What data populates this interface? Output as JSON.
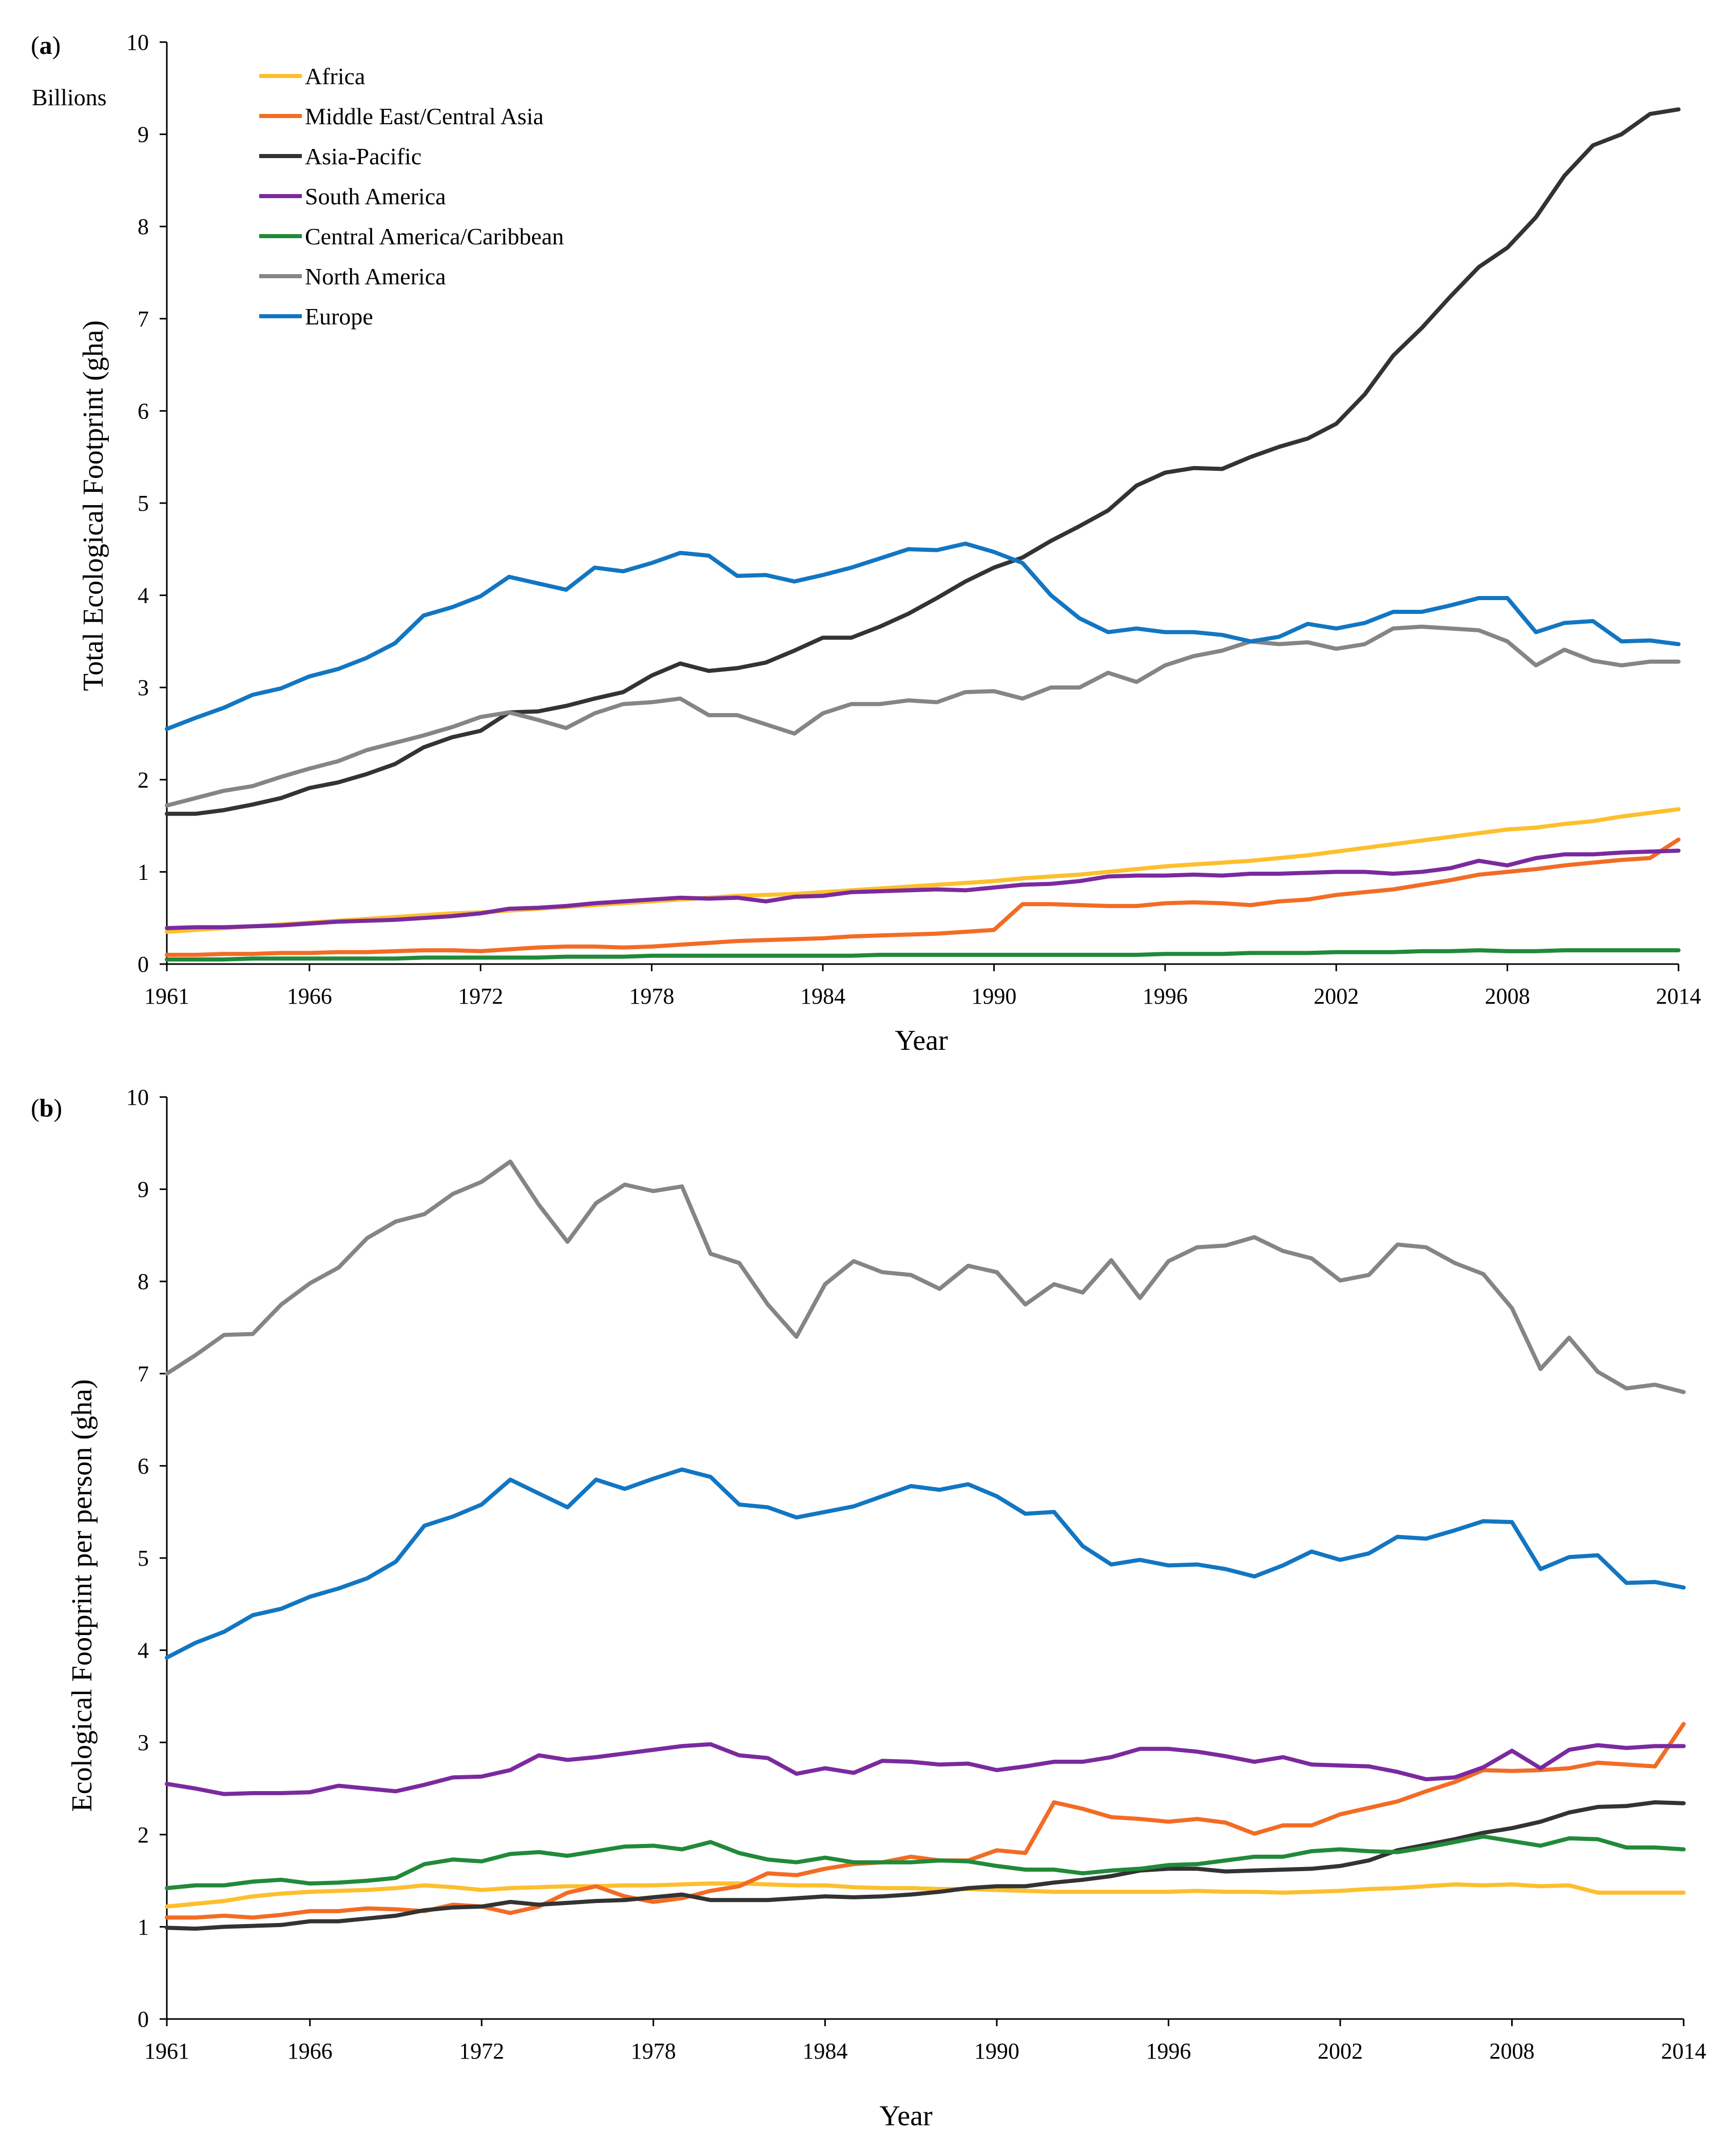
{
  "colors": {
    "africa": "#fdbf2d",
    "middle_east": "#f26c24",
    "asia_pacific": "#333333",
    "south_america": "#7b2a9e",
    "central_america": "#218a3a",
    "north_america": "#858585",
    "europe": "#1276c2"
  },
  "chart_data": [
    {
      "type": "line",
      "panel_label": "(a)",
      "panel_letter": "a",
      "units_label": "Billions",
      "title": "",
      "xlabel": "Year",
      "ylabel": "Total Ecological Footprint (gha)",
      "xlim": [
        1961,
        2014
      ],
      "ylim": [
        0,
        10
      ],
      "xticks": [
        1961,
        1966,
        1972,
        1978,
        1984,
        1990,
        1996,
        2002,
        2008,
        2014
      ],
      "yticks": [
        0,
        1,
        2,
        3,
        4,
        5,
        6,
        7,
        8,
        9,
        10
      ],
      "legend": [
        "Africa",
        "Middle East/Central Asia",
        "Asia-Pacific",
        "South America",
        "Central America/Caribbean",
        "North America",
        "Europe"
      ],
      "x": [
        1961,
        1962,
        1963,
        1964,
        1965,
        1966,
        1967,
        1968,
        1969,
        1970,
        1971,
        1972,
        1973,
        1974,
        1975,
        1976,
        1977,
        1978,
        1979,
        1980,
        1981,
        1982,
        1983,
        1984,
        1985,
        1986,
        1987,
        1988,
        1989,
        1990,
        1991,
        1992,
        1993,
        1994,
        1995,
        1996,
        1997,
        1998,
        1999,
        2000,
        2001,
        2002,
        2003,
        2004,
        2005,
        2006,
        2007,
        2008,
        2009,
        2010,
        2011,
        2012,
        2013,
        2014
      ],
      "series": [
        {
          "key": "africa",
          "name": "Africa",
          "values": [
            0.35,
            0.37,
            0.39,
            0.41,
            0.43,
            0.45,
            0.47,
            0.49,
            0.51,
            0.53,
            0.55,
            0.56,
            0.58,
            0.6,
            0.62,
            0.64,
            0.66,
            0.68,
            0.7,
            0.72,
            0.74,
            0.75,
            0.76,
            0.78,
            0.8,
            0.82,
            0.84,
            0.86,
            0.88,
            0.9,
            0.93,
            0.95,
            0.97,
            1.0,
            1.03,
            1.06,
            1.08,
            1.1,
            1.12,
            1.15,
            1.18,
            1.22,
            1.26,
            1.3,
            1.34,
            1.38,
            1.42,
            1.46,
            1.48,
            1.52,
            1.55,
            1.6,
            1.64,
            1.68
          ]
        },
        {
          "key": "middle_east",
          "name": "Middle East/Central Asia",
          "values": [
            0.1,
            0.1,
            0.11,
            0.11,
            0.12,
            0.12,
            0.13,
            0.13,
            0.14,
            0.15,
            0.15,
            0.14,
            0.16,
            0.18,
            0.19,
            0.19,
            0.18,
            0.19,
            0.21,
            0.23,
            0.25,
            0.26,
            0.27,
            0.28,
            0.3,
            0.31,
            0.32,
            0.33,
            0.35,
            0.37,
            0.65,
            0.65,
            0.64,
            0.63,
            0.63,
            0.66,
            0.67,
            0.66,
            0.64,
            0.68,
            0.7,
            0.75,
            0.78,
            0.81,
            0.86,
            0.91,
            0.97,
            1.0,
            1.03,
            1.07,
            1.1,
            1.13,
            1.15,
            1.35
          ]
        },
        {
          "key": "asia_pacific",
          "name": "Asia-Pacific",
          "values": [
            1.63,
            1.63,
            1.67,
            1.73,
            1.8,
            1.91,
            1.97,
            2.06,
            2.17,
            2.35,
            2.46,
            2.53,
            2.73,
            2.74,
            2.8,
            2.88,
            2.95,
            3.13,
            3.26,
            3.18,
            3.21,
            3.27,
            3.4,
            3.54,
            3.54,
            3.66,
            3.8,
            3.97,
            4.15,
            4.3,
            4.41,
            4.59,
            4.75,
            4.92,
            5.19,
            5.33,
            5.38,
            5.37,
            5.5,
            5.61,
            5.7,
            5.86,
            6.18,
            6.6,
            6.9,
            7.24,
            7.56,
            7.77,
            8.1,
            8.55,
            8.88,
            9.0,
            9.22,
            9.27
          ]
        },
        {
          "key": "south_america",
          "name": "South America",
          "values": [
            0.39,
            0.4,
            0.4,
            0.41,
            0.42,
            0.44,
            0.46,
            0.47,
            0.48,
            0.5,
            0.52,
            0.55,
            0.6,
            0.61,
            0.63,
            0.66,
            0.68,
            0.7,
            0.72,
            0.71,
            0.72,
            0.68,
            0.73,
            0.74,
            0.78,
            0.79,
            0.8,
            0.81,
            0.8,
            0.83,
            0.86,
            0.87,
            0.9,
            0.95,
            0.96,
            0.96,
            0.97,
            0.96,
            0.98,
            0.98,
            0.99,
            1.0,
            1.0,
            0.98,
            1.0,
            1.04,
            1.12,
            1.07,
            1.15,
            1.19,
            1.19,
            1.21,
            1.22,
            1.23
          ]
        },
        {
          "key": "central_america",
          "name": "Central America/Caribbean",
          "values": [
            0.05,
            0.05,
            0.05,
            0.06,
            0.06,
            0.06,
            0.06,
            0.06,
            0.06,
            0.07,
            0.07,
            0.07,
            0.07,
            0.07,
            0.08,
            0.08,
            0.08,
            0.09,
            0.09,
            0.09,
            0.09,
            0.09,
            0.09,
            0.09,
            0.09,
            0.1,
            0.1,
            0.1,
            0.1,
            0.1,
            0.1,
            0.1,
            0.1,
            0.1,
            0.1,
            0.11,
            0.11,
            0.11,
            0.12,
            0.12,
            0.12,
            0.13,
            0.13,
            0.13,
            0.14,
            0.14,
            0.15,
            0.14,
            0.14,
            0.15,
            0.15,
            0.15,
            0.15,
            0.15
          ]
        },
        {
          "key": "north_america",
          "name": "North America",
          "values": [
            1.72,
            1.8,
            1.88,
            1.93,
            2.03,
            2.12,
            2.2,
            2.32,
            2.4,
            2.48,
            2.57,
            2.68,
            2.73,
            2.65,
            2.56,
            2.72,
            2.82,
            2.84,
            2.88,
            2.7,
            2.7,
            2.6,
            2.5,
            2.72,
            2.82,
            2.82,
            2.86,
            2.84,
            2.95,
            2.96,
            2.88,
            3.0,
            3.0,
            3.16,
            3.06,
            3.24,
            3.34,
            3.4,
            3.5,
            3.47,
            3.49,
            3.42,
            3.47,
            3.64,
            3.66,
            3.64,
            3.62,
            3.5,
            3.24,
            3.41,
            3.29,
            3.24,
            3.28,
            3.28
          ]
        },
        {
          "key": "europe",
          "name": "Europe",
          "values": [
            2.55,
            2.67,
            2.78,
            2.92,
            2.99,
            3.12,
            3.2,
            3.32,
            3.48,
            3.78,
            3.87,
            3.99,
            4.2,
            4.13,
            4.06,
            4.3,
            4.26,
            4.35,
            4.46,
            4.43,
            4.21,
            4.22,
            4.15,
            4.22,
            4.3,
            4.4,
            4.5,
            4.49,
            4.56,
            4.47,
            4.35,
            4.0,
            3.75,
            3.6,
            3.64,
            3.6,
            3.6,
            3.57,
            3.5,
            3.55,
            3.69,
            3.64,
            3.7,
            3.82,
            3.82,
            3.89,
            3.97,
            3.97,
            3.6,
            3.7,
            3.72,
            3.5,
            3.51,
            3.47
          ]
        }
      ]
    },
    {
      "type": "line",
      "panel_label": "(b)",
      "panel_letter": "b",
      "title": "",
      "xlabel": "Year",
      "ylabel": "Ecological Footprint per person (gha)",
      "xlim": [
        1961,
        2014
      ],
      "ylim": [
        0,
        10
      ],
      "xticks": [
        1961,
        1966,
        1972,
        1978,
        1984,
        1990,
        1996,
        2002,
        2008,
        2014
      ],
      "yticks": [
        0,
        1,
        2,
        3,
        4,
        5,
        6,
        7,
        8,
        9,
        10
      ],
      "x": [
        1961,
        1962,
        1963,
        1964,
        1965,
        1966,
        1967,
        1968,
        1969,
        1970,
        1971,
        1972,
        1973,
        1974,
        1975,
        1976,
        1977,
        1978,
        1979,
        1980,
        1981,
        1982,
        1983,
        1984,
        1985,
        1986,
        1987,
        1988,
        1989,
        1990,
        1991,
        1992,
        1993,
        1994,
        1995,
        1996,
        1997,
        1998,
        1999,
        2000,
        2001,
        2002,
        2003,
        2004,
        2005,
        2006,
        2007,
        2008,
        2009,
        2010,
        2011,
        2012,
        2013,
        2014
      ],
      "series": [
        {
          "key": "africa",
          "name": "Africa",
          "values": [
            1.22,
            1.25,
            1.28,
            1.33,
            1.36,
            1.38,
            1.39,
            1.4,
            1.42,
            1.45,
            1.43,
            1.4,
            1.42,
            1.43,
            1.44,
            1.44,
            1.45,
            1.45,
            1.46,
            1.47,
            1.47,
            1.46,
            1.45,
            1.45,
            1.43,
            1.42,
            1.42,
            1.41,
            1.41,
            1.4,
            1.39,
            1.38,
            1.38,
            1.38,
            1.38,
            1.38,
            1.39,
            1.38,
            1.38,
            1.37,
            1.38,
            1.39,
            1.41,
            1.42,
            1.44,
            1.46,
            1.45,
            1.46,
            1.44,
            1.45,
            1.37,
            1.37,
            1.37,
            1.37
          ]
        },
        {
          "key": "middle_east",
          "name": "Middle East/Central Asia",
          "values": [
            1.1,
            1.1,
            1.12,
            1.1,
            1.13,
            1.17,
            1.17,
            1.2,
            1.19,
            1.17,
            1.24,
            1.22,
            1.15,
            1.22,
            1.37,
            1.44,
            1.33,
            1.27,
            1.31,
            1.39,
            1.44,
            1.58,
            1.56,
            1.63,
            1.68,
            1.7,
            1.76,
            1.72,
            1.72,
            1.83,
            1.8,
            2.35,
            2.28,
            2.19,
            2.17,
            2.14,
            2.17,
            2.13,
            2.01,
            2.1,
            2.1,
            2.22,
            2.29,
            2.36,
            2.47,
            2.57,
            2.7,
            2.69,
            2.7,
            2.72,
            2.78,
            2.76,
            2.74,
            3.2
          ]
        },
        {
          "key": "asia_pacific",
          "name": "Asia-Pacific",
          "values": [
            0.99,
            0.98,
            1.0,
            1.01,
            1.02,
            1.06,
            1.06,
            1.09,
            1.12,
            1.18,
            1.21,
            1.22,
            1.27,
            1.24,
            1.26,
            1.28,
            1.29,
            1.32,
            1.35,
            1.29,
            1.29,
            1.29,
            1.31,
            1.33,
            1.32,
            1.33,
            1.35,
            1.38,
            1.42,
            1.44,
            1.44,
            1.48,
            1.51,
            1.55,
            1.61,
            1.63,
            1.63,
            1.6,
            1.61,
            1.62,
            1.63,
            1.66,
            1.72,
            1.83,
            1.89,
            1.95,
            2.02,
            2.07,
            2.14,
            2.24,
            2.3,
            2.31,
            2.35,
            2.34
          ]
        },
        {
          "key": "south_america",
          "name": "South America",
          "values": [
            2.55,
            2.5,
            2.44,
            2.45,
            2.45,
            2.46,
            2.53,
            2.5,
            2.47,
            2.54,
            2.62,
            2.63,
            2.7,
            2.86,
            2.81,
            2.84,
            2.88,
            2.92,
            2.96,
            2.98,
            2.86,
            2.83,
            2.66,
            2.72,
            2.67,
            2.8,
            2.79,
            2.76,
            2.77,
            2.7,
            2.74,
            2.79,
            2.79,
            2.84,
            2.93,
            2.93,
            2.9,
            2.85,
            2.79,
            2.84,
            2.76,
            2.75,
            2.74,
            2.68,
            2.6,
            2.62,
            2.73,
            2.91,
            2.72,
            2.92,
            2.97,
            2.94,
            2.96,
            2.96
          ]
        },
        {
          "key": "central_america",
          "name": "Central America/Caribbean",
          "values": [
            1.42,
            1.45,
            1.45,
            1.49,
            1.51,
            1.47,
            1.48,
            1.5,
            1.53,
            1.68,
            1.73,
            1.71,
            1.79,
            1.81,
            1.77,
            1.82,
            1.87,
            1.88,
            1.84,
            1.92,
            1.8,
            1.73,
            1.7,
            1.75,
            1.7,
            1.7,
            1.7,
            1.72,
            1.71,
            1.66,
            1.62,
            1.62,
            1.58,
            1.61,
            1.63,
            1.67,
            1.68,
            1.72,
            1.76,
            1.76,
            1.82,
            1.84,
            1.82,
            1.81,
            1.86,
            1.92,
            1.98,
            1.93,
            1.88,
            1.96,
            1.95,
            1.86,
            1.86,
            1.84
          ]
        },
        {
          "key": "north_america",
          "name": "North America",
          "values": [
            7.0,
            7.2,
            7.42,
            7.43,
            7.75,
            7.98,
            8.15,
            8.47,
            8.65,
            8.73,
            8.95,
            9.08,
            9.3,
            8.83,
            8.43,
            8.85,
            9.05,
            8.98,
            9.03,
            8.3,
            8.2,
            7.75,
            7.4,
            7.97,
            8.22,
            8.1,
            8.07,
            7.92,
            8.17,
            8.1,
            7.75,
            7.97,
            7.88,
            8.23,
            7.82,
            8.22,
            8.37,
            8.39,
            8.48,
            8.33,
            8.25,
            8.01,
            8.07,
            8.4,
            8.37,
            8.2,
            8.08,
            7.71,
            7.05,
            7.39,
            7.02,
            6.84,
            6.88,
            6.8
          ]
        },
        {
          "key": "europe",
          "name": "Europe",
          "values": [
            3.92,
            4.08,
            4.2,
            4.38,
            4.45,
            4.58,
            4.67,
            4.78,
            4.96,
            5.35,
            5.45,
            5.58,
            5.85,
            5.7,
            5.55,
            5.85,
            5.75,
            5.86,
            5.96,
            5.88,
            5.58,
            5.55,
            5.44,
            5.5,
            5.56,
            5.67,
            5.78,
            5.74,
            5.8,
            5.67,
            5.48,
            5.5,
            5.13,
            4.93,
            4.98,
            4.92,
            4.93,
            4.88,
            4.8,
            4.92,
            5.07,
            4.98,
            5.05,
            5.23,
            5.21,
            5.3,
            5.4,
            5.39,
            4.88,
            5.01,
            5.03,
            4.73,
            4.74,
            4.68
          ]
        }
      ]
    }
  ]
}
